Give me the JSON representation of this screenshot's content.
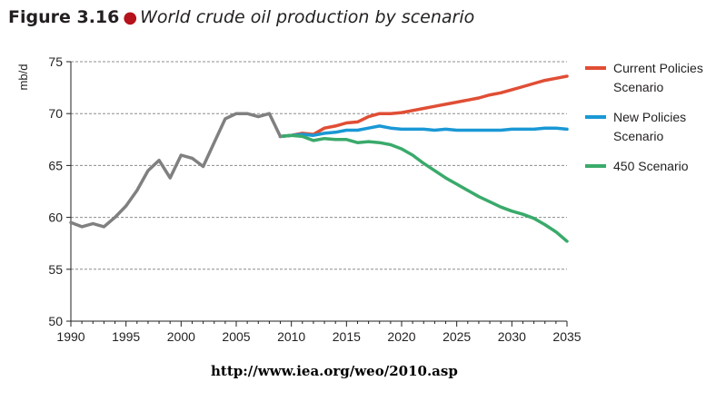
{
  "figure": {
    "label": "Figure 3.16",
    "title": "World crude oil production by scenario",
    "url": "http://www.iea.org/weo/2010.asp"
  },
  "chart_data": {
    "type": "line",
    "ylabel": "mb/d",
    "xlabel": "",
    "xlim": [
      1990,
      2035
    ],
    "ylim": [
      50,
      75
    ],
    "xticks": [
      1990,
      1995,
      2000,
      2005,
      2010,
      2015,
      2020,
      2025,
      2030,
      2035
    ],
    "yticks": [
      50,
      55,
      60,
      65,
      70,
      75
    ],
    "grid": "horizontal dashed",
    "legend_position": "right",
    "series": [
      {
        "name": "",
        "color": "#808080",
        "x": [
          1990,
          1991,
          1992,
          1993,
          1994,
          1995,
          1996,
          1997,
          1998,
          1999,
          2000,
          2001,
          2002,
          2003,
          2004,
          2005,
          2006,
          2007,
          2008,
          2009
        ],
        "y": [
          59.5,
          59.1,
          59.4,
          59.1,
          60.0,
          61.1,
          62.6,
          64.5,
          65.5,
          63.8,
          66.0,
          65.7,
          64.9,
          67.2,
          69.5,
          70.0,
          70.0,
          69.7,
          70.0,
          67.8
        ]
      },
      {
        "name": "Current Policies Scenario",
        "color": "#e04e35",
        "x": [
          2009,
          2010,
          2011,
          2012,
          2013,
          2014,
          2015,
          2016,
          2017,
          2018,
          2019,
          2020,
          2021,
          2022,
          2023,
          2024,
          2025,
          2026,
          2027,
          2028,
          2029,
          2030,
          2031,
          2032,
          2033,
          2034,
          2035
        ],
        "y": [
          67.8,
          67.9,
          68.1,
          68.0,
          68.6,
          68.8,
          69.1,
          69.2,
          69.7,
          70.0,
          70.0,
          70.1,
          70.3,
          70.5,
          70.7,
          70.9,
          71.1,
          71.3,
          71.5,
          71.8,
          72.0,
          72.3,
          72.6,
          72.9,
          73.2,
          73.4,
          73.6
        ]
      },
      {
        "name": "New Policies Scenario",
        "color": "#1a98d5",
        "x": [
          2009,
          2010,
          2011,
          2012,
          2013,
          2014,
          2015,
          2016,
          2017,
          2018,
          2019,
          2020,
          2021,
          2022,
          2023,
          2024,
          2025,
          2026,
          2027,
          2028,
          2029,
          2030,
          2031,
          2032,
          2033,
          2034,
          2035
        ],
        "y": [
          67.8,
          67.9,
          68.0,
          67.9,
          68.1,
          68.2,
          68.4,
          68.4,
          68.6,
          68.8,
          68.6,
          68.5,
          68.5,
          68.5,
          68.4,
          68.5,
          68.4,
          68.4,
          68.4,
          68.4,
          68.4,
          68.5,
          68.5,
          68.5,
          68.6,
          68.6,
          68.5
        ]
      },
      {
        "name": "450 Scenario",
        "color": "#3aaa6b",
        "x": [
          2009,
          2010,
          2011,
          2012,
          2013,
          2014,
          2015,
          2016,
          2017,
          2018,
          2019,
          2020,
          2021,
          2022,
          2023,
          2024,
          2025,
          2026,
          2027,
          2028,
          2029,
          2030,
          2031,
          2032,
          2033,
          2034,
          2035
        ],
        "y": [
          67.8,
          67.9,
          67.8,
          67.4,
          67.6,
          67.5,
          67.5,
          67.2,
          67.3,
          67.2,
          67.0,
          66.6,
          66.0,
          65.2,
          64.5,
          63.8,
          63.2,
          62.6,
          62.0,
          61.5,
          61.0,
          60.6,
          60.3,
          59.9,
          59.3,
          58.6,
          57.7
        ]
      }
    ]
  }
}
